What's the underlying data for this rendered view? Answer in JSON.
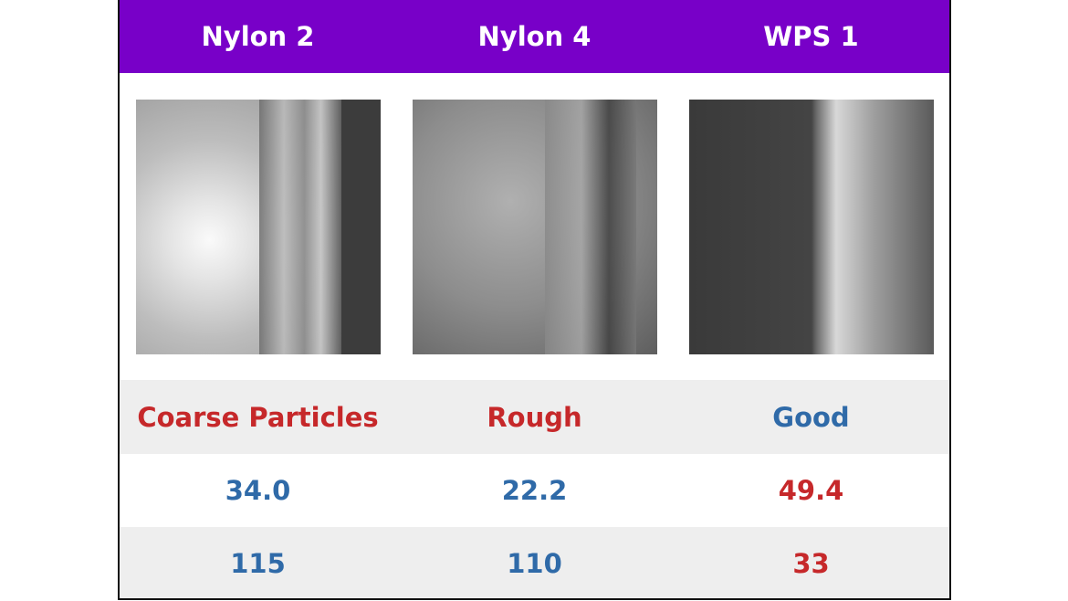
{
  "table": {
    "header": [
      "Nylon 2",
      "Nylon 4",
      "WPS 1"
    ],
    "rows": [
      [
        "Coarse Particles",
        "Rough",
        "Good"
      ],
      [
        "34.0",
        "22.2",
        "49.4"
      ],
      [
        "115",
        "110",
        "33"
      ]
    ]
  }
}
